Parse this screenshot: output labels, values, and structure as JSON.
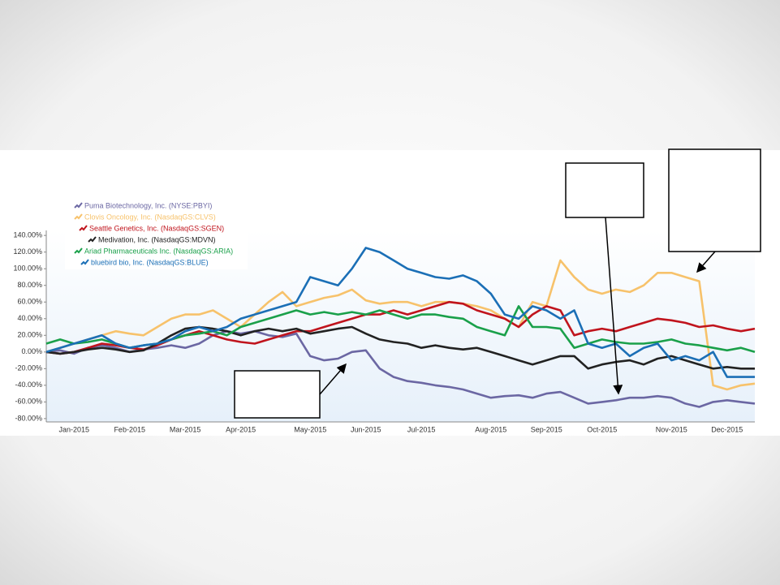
{
  "chart_data": {
    "type": "line",
    "categories": [
      null,
      null,
      "Jan-2015",
      null,
      null,
      null,
      "Feb-2015",
      null,
      null,
      null,
      "Mar-2015",
      null,
      null,
      null,
      "Apr-2015",
      null,
      null,
      null,
      null,
      "May-2015",
      null,
      null,
      null,
      "Jun-2015",
      null,
      null,
      null,
      "Jul-2015",
      null,
      null,
      null,
      null,
      "Aug-2015",
      null,
      null,
      null,
      "Sep-2015",
      null,
      null,
      null,
      "Oct-2015",
      null,
      null,
      null,
      null,
      "Nov-2015",
      null,
      null,
      null,
      "Dec-2015",
      null,
      null
    ],
    "series": [
      {
        "name": "Puma Biotechnology, Inc. (NYSE:PBYI)",
        "color": "#6b67a3",
        "values": [
          0,
          2,
          -2,
          5,
          8,
          5,
          0,
          3,
          5,
          8,
          5,
          10,
          20,
          25,
          22,
          25,
          20,
          18,
          22,
          -5,
          -10,
          -8,
          0,
          2,
          -20,
          -30,
          -35,
          -37,
          -40,
          -42,
          -45,
          -50,
          -55,
          -53,
          -52,
          -55,
          -50,
          -48,
          -55,
          -62,
          -60,
          -58,
          -55,
          -55,
          -53,
          -55,
          -62,
          -66,
          -60,
          -58,
          -60,
          -62
        ]
      },
      {
        "name": "Clovis Oncology, Inc. (NasdaqGS:CLVS)",
        "color": "#f7c26b",
        "values": [
          0,
          5,
          10,
          15,
          20,
          25,
          22,
          20,
          30,
          40,
          45,
          45,
          50,
          40,
          30,
          45,
          60,
          72,
          55,
          60,
          65,
          68,
          75,
          62,
          58,
          60,
          60,
          55,
          60,
          60,
          58,
          55,
          50,
          40,
          30,
          60,
          55,
          110,
          90,
          75,
          70,
          75,
          72,
          80,
          95,
          95,
          90,
          85,
          -40,
          -45,
          -40,
          -38
        ]
      },
      {
        "name": "Seattle Genetics, Inc. (NasdaqGS:SGEN)",
        "color": "#c0141d",
        "values": [
          0,
          -2,
          0,
          5,
          10,
          8,
          5,
          3,
          8,
          15,
          20,
          25,
          20,
          15,
          12,
          10,
          15,
          20,
          25,
          25,
          30,
          35,
          40,
          45,
          45,
          50,
          45,
          50,
          55,
          60,
          58,
          50,
          45,
          40,
          30,
          45,
          55,
          50,
          20,
          25,
          28,
          25,
          30,
          35,
          40,
          38,
          35,
          30,
          32,
          28,
          25,
          28
        ]
      },
      {
        "name": "Medivation, Inc. (NasdaqGS:MDVN)",
        "color": "#222222",
        "values": [
          0,
          -2,
          0,
          3,
          5,
          3,
          0,
          2,
          10,
          20,
          28,
          30,
          28,
          25,
          20,
          25,
          28,
          25,
          28,
          22,
          25,
          28,
          30,
          22,
          15,
          12,
          10,
          5,
          8,
          5,
          3,
          5,
          0,
          -5,
          -10,
          -15,
          -10,
          -5,
          -5,
          -20,
          -15,
          -12,
          -10,
          -15,
          -8,
          -5,
          -10,
          -15,
          -20,
          -18,
          -20,
          -20
        ]
      },
      {
        "name": "Ariad Pharmaceuticals Inc. (NasdaqGS:ARIA)",
        "color": "#1aa04a",
        "values": [
          10,
          15,
          10,
          12,
          15,
          10,
          5,
          8,
          10,
          15,
          20,
          22,
          25,
          20,
          30,
          35,
          40,
          45,
          50,
          45,
          48,
          45,
          48,
          45,
          50,
          45,
          40,
          45,
          45,
          42,
          40,
          30,
          25,
          20,
          55,
          30,
          30,
          28,
          5,
          10,
          15,
          12,
          10,
          10,
          12,
          15,
          10,
          8,
          5,
          2,
          5,
          0
        ]
      },
      {
        "name": "bluebird bio, Inc. (NasdaqGS:BLUE)",
        "color": "#1b6fb6",
        "values": [
          0,
          5,
          10,
          15,
          20,
          10,
          5,
          8,
          10,
          15,
          25,
          30,
          25,
          30,
          40,
          45,
          50,
          55,
          60,
          90,
          85,
          80,
          100,
          125,
          120,
          110,
          100,
          95,
          90,
          88,
          92,
          85,
          70,
          45,
          40,
          55,
          50,
          40,
          50,
          10,
          5,
          10,
          -5,
          5,
          10,
          -10,
          -5,
          -10,
          0,
          -30,
          -30,
          -30
        ]
      }
    ],
    "ylim": [
      -84,
      146
    ],
    "yticks": [
      {
        "value": 140,
        "label": "140.00%"
      },
      {
        "value": 120,
        "label": "120.00%"
      },
      {
        "value": 100,
        "label": "100.00%"
      },
      {
        "value": 80,
        "label": "80.00%"
      },
      {
        "value": 60,
        "label": "60.00%"
      },
      {
        "value": 40,
        "label": "40.00%"
      },
      {
        "value": 20,
        "label": "20.00%"
      },
      {
        "value": 0,
        "label": "0.00%"
      },
      {
        "value": -20,
        "label": "-20.00%"
      },
      {
        "value": -40,
        "label": "-40.00%"
      },
      {
        "value": -60,
        "label": "-60.00%"
      },
      {
        "value": -80,
        "label": "-80.00%"
      }
    ],
    "grid": false
  }
}
